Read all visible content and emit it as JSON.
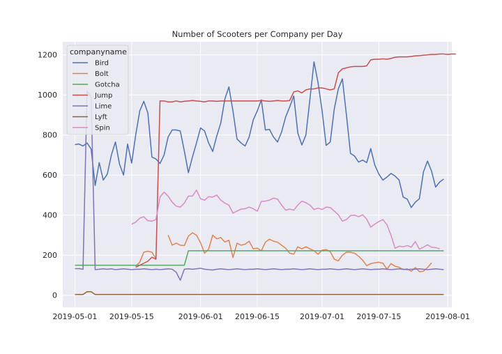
{
  "chart_data": {
    "type": "line",
    "title": "Number of Scooters per Company per Day",
    "xlabel": "",
    "ylabel": "",
    "x_start": "2019-05-01",
    "x_end": "2019-07-30",
    "xlim": [
      "2019-04-28",
      "2019-08-02"
    ],
    "ylim": [
      -60,
      1265
    ],
    "x_ticks": [
      "2019-05-01",
      "2019-05-15",
      "2019-06-01",
      "2019-06-15",
      "2019-07-01",
      "2019-07-15",
      "2019-08-01"
    ],
    "y_ticks": [
      0,
      200,
      400,
      600,
      800,
      1000,
      1200
    ],
    "grid": true,
    "legend_title": "companyname",
    "legend_position": "top-left",
    "series": [
      {
        "name": "Bird",
        "color": "#4c72b0",
        "start": "2019-05-01",
        "values": [
          752,
          755,
          745,
          760,
          730,
          548,
          662,
          575,
          605,
          700,
          765,
          655,
          600,
          755,
          660,
          800,
          920,
          968,
          910,
          690,
          680,
          658,
          700,
          790,
          825,
          825,
          820,
          720,
          612,
          690,
          760,
          835,
          820,
          760,
          718,
          795,
          860,
          980,
          1040,
          920,
          780,
          760,
          745,
          790,
          875,
          920,
          975,
          825,
          828,
          790,
          765,
          815,
          890,
          940,
          995,
          810,
          750,
          800,
          980,
          1165,
          1060,
          920,
          748,
          765,
          930,
          1030,
          1080,
          900,
          708,
          695,
          665,
          675,
          662,
          732,
          650,
          605,
          575,
          590,
          608,
          595,
          575,
          490,
          480,
          438,
          465,
          482,
          615,
          670,
          620,
          540,
          565,
          580
        ]
      },
      {
        "name": "Bolt",
        "color": "#dd8452",
        "segments": [
          {
            "start": "2019-05-16",
            "values": [
              145,
              165,
              215,
              220,
              215,
              182
            ]
          },
          {
            "start": "2019-05-24",
            "values": [
              300,
              250,
              260,
              250,
              248,
              295,
              312,
              300,
              262,
              210,
              230,
              300,
              282,
              288,
              266,
              275,
              188,
              260,
              250,
              255,
              270,
              232,
              235,
              222,
              265,
              280,
              270,
              265,
              250,
              235,
              210,
              205,
              242,
              232,
              242,
              232,
              222,
              205,
              225,
              228,
              218,
              180,
              172,
              200,
              215,
              215,
              210,
              195,
              175,
              148,
              158,
              162,
              165,
              160,
              130,
              158,
              145,
              140,
              128,
              132,
              120,
              138,
              118,
              120,
              138,
              162
            ]
          }
        ]
      },
      {
        "name": "Gotcha",
        "color": "#55a868",
        "start": "2019-05-01",
        "values": [
          150,
          150,
          150,
          150,
          150,
          150,
          150,
          150,
          150,
          150,
          150,
          150,
          150,
          150,
          150,
          150,
          150,
          150,
          150,
          150,
          150,
          150,
          150,
          150,
          150,
          150,
          150,
          150,
          222,
          222,
          222,
          222,
          222,
          222,
          222,
          222,
          222,
          222,
          222,
          222,
          222,
          222,
          222,
          222,
          222,
          222,
          222,
          222,
          222,
          222,
          222,
          222,
          222,
          222,
          222,
          222,
          222,
          222,
          222,
          222,
          222,
          222,
          222,
          222,
          222,
          222,
          222,
          222,
          222,
          222,
          222,
          222,
          222,
          222,
          222,
          222,
          222,
          222,
          222,
          222,
          222,
          222,
          222,
          222,
          222,
          222,
          222,
          222,
          222,
          222,
          222,
          222
        ]
      },
      {
        "name": "Jump",
        "color": "#c44e52",
        "segments": [
          {
            "start": "2019-05-16",
            "values": [
              140,
              150,
              160,
              170,
              190,
              180,
              970,
              970,
              965,
              965,
              970,
              965,
              968,
              970,
              972,
              970,
              968,
              965,
              970,
              970,
              968,
              970,
              970,
              970,
              970,
              970,
              970,
              970,
              970,
              970,
              970,
              972,
              970,
              968,
              970,
              972,
              970,
              970,
              972,
              1015,
              1020,
              1010,
              1025,
              1030,
              1030,
              1035,
              1035,
              1030,
              1025,
              1030,
              1110,
              1130,
              1135,
              1140,
              1142,
              1142,
              1142,
              1145,
              1175,
              1178,
              1178,
              1180,
              1178,
              1182,
              1188,
              1190,
              1190,
              1190,
              1192,
              1195,
              1196,
              1198,
              1200,
              1202,
              1202,
              1204,
              1204,
              1202,
              1204,
              1204
            ]
          }
        ]
      },
      {
        "name": "Lime",
        "color": "#8172b3",
        "start": "2019-05-01",
        "values": [
          133,
          133,
          130,
          1020,
          990,
          128,
          130,
          132,
          130,
          132,
          128,
          130,
          132,
          130,
          128,
          130,
          130,
          132,
          130,
          128,
          130,
          128,
          130,
          132,
          130,
          115,
          75,
          130,
          132,
          130,
          132,
          135,
          130,
          128,
          126,
          130,
          132,
          130,
          128,
          130,
          132,
          130,
          128,
          130,
          130,
          132,
          130,
          128,
          130,
          132,
          130,
          128,
          130,
          130,
          132,
          130,
          128,
          130,
          132,
          130,
          128,
          130,
          130,
          132,
          130,
          128,
          130,
          132,
          130,
          128,
          130,
          132,
          130,
          128,
          130,
          130,
          132,
          130,
          128,
          130,
          132,
          130,
          128,
          130,
          130,
          132,
          130,
          128,
          130,
          132,
          130,
          128
        ]
      },
      {
        "name": "Lyft",
        "color": "#8c613c",
        "start": "2019-05-01",
        "values": [
          4,
          4,
          4,
          18,
          18,
          4,
          4,
          4,
          4,
          4,
          4,
          4,
          4,
          4,
          4,
          4,
          4,
          4,
          4,
          4,
          4,
          4,
          4,
          4,
          4,
          4,
          4,
          4,
          4,
          4,
          4,
          4,
          4,
          4,
          4,
          4,
          4,
          4,
          4,
          4,
          4,
          4,
          4,
          4,
          4,
          4,
          4,
          4,
          4,
          4,
          4,
          4,
          4,
          4,
          4,
          4,
          4,
          4,
          4,
          4,
          4,
          4,
          4,
          4,
          4,
          4,
          4,
          4,
          4,
          4,
          4,
          4,
          4,
          4,
          4,
          4,
          4,
          4,
          4,
          4,
          4,
          4,
          4,
          4,
          4,
          4,
          4,
          4,
          4,
          4,
          4,
          4
        ]
      },
      {
        "name": "Spin",
        "color": "#da8bc3",
        "start": "2019-05-15",
        "values": [
          355,
          365,
          385,
          392,
          372,
          370,
          378,
          490,
          515,
          495,
          465,
          445,
          440,
          460,
          495,
          495,
          525,
          482,
          475,
          492,
          490,
          500,
          475,
          460,
          450,
          410,
          420,
          430,
          432,
          440,
          432,
          420,
          468,
          470,
          475,
          485,
          480,
          450,
          425,
          430,
          425,
          450,
          470,
          462,
          450,
          428,
          435,
          428,
          440,
          438,
          420,
          402,
          370,
          378,
          398,
          400,
          392,
          402,
          380,
          340,
          355,
          368,
          378,
          352,
          300,
          235,
          245,
          242,
          248,
          240,
          268,
          230,
          240,
          252,
          240,
          238,
          232
        ]
      }
    ]
  }
}
